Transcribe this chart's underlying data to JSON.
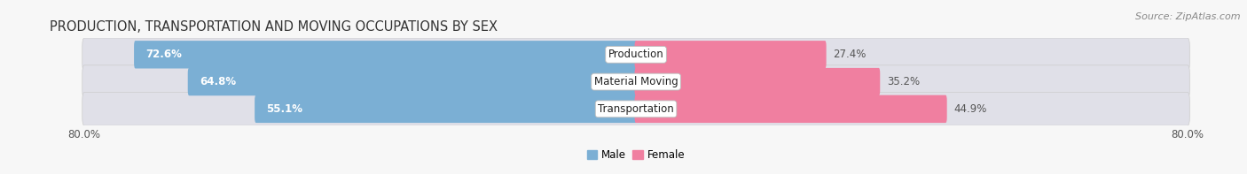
{
  "title": "PRODUCTION, TRANSPORTATION AND MOVING OCCUPATIONS BY SEX",
  "source": "Source: ZipAtlas.com",
  "categories": [
    "Production",
    "Material Moving",
    "Transportation"
  ],
  "male_values": [
    72.6,
    64.8,
    55.1
  ],
  "female_values": [
    27.4,
    35.2,
    44.9
  ],
  "male_color": "#7bafd4",
  "female_color": "#f07fa0",
  "male_label": "Male",
  "female_label": "Female",
  "axis_total": 80.0,
  "axis_label_left": "80.0%",
  "axis_label_right": "80.0%",
  "bg_color": "#f7f7f7",
  "bar_bg_color": "#e0e0e8",
  "title_fontsize": 10.5,
  "label_fontsize": 8.5,
  "pct_fontsize": 8.5,
  "tick_fontsize": 8.5,
  "source_fontsize": 8
}
